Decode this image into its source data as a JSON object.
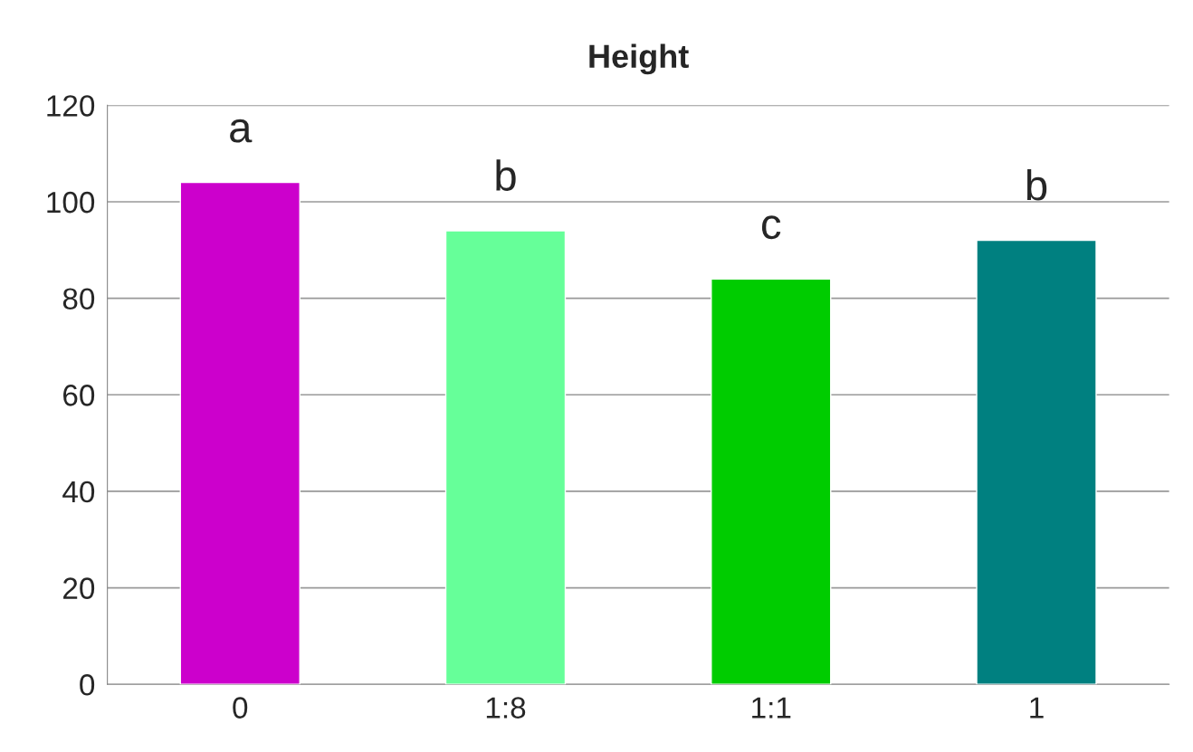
{
  "chart_data": {
    "type": "bar",
    "title": "Height",
    "categories": [
      "0",
      "1:8",
      "1:1",
      "1"
    ],
    "values": [
      104,
      94,
      84,
      92
    ],
    "colors": [
      "#cc00cc",
      "#66ff99",
      "#00cc00",
      "#008080"
    ],
    "ylim": [
      0,
      120
    ],
    "yticks": [
      0,
      20,
      40,
      60,
      80,
      100,
      120
    ],
    "grid": "y",
    "annotations": [
      "a",
      "b",
      "c",
      "b"
    ]
  }
}
